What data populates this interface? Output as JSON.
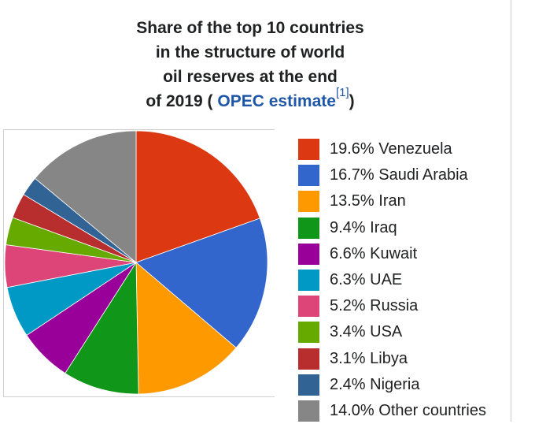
{
  "title": {
    "line1": "Share of the top 10 countries",
    "line2": "in the structure of world",
    "line3": "oil reserves at the end",
    "line4_prefix": "of 2019 (",
    "link_text": "OPEC estimate",
    "citation": "[1]",
    "line4_suffix": ")"
  },
  "legend": [
    {
      "label": "19.6% Venezuela",
      "color": "#dc3912"
    },
    {
      "label": "16.7% Saudi Arabia",
      "color": "#3366cc"
    },
    {
      "label": "13.5% Iran",
      "color": "#ff9900"
    },
    {
      "label": "9.4% Iraq",
      "color": "#109618"
    },
    {
      "label": "6.6% Kuwait",
      "color": "#990099"
    },
    {
      "label": "6.3% UAE",
      "color": "#0099c6"
    },
    {
      "label": "5.2% Russia",
      "color": "#dd4477"
    },
    {
      "label": "3.4% USA",
      "color": "#66aa00"
    },
    {
      "label": "3.1% Libya",
      "color": "#b82e2e"
    },
    {
      "label": "2.4% Nigeria",
      "color": "#316395"
    },
    {
      "label": "14.0% Other countries",
      "color": "#868686"
    }
  ],
  "chart_data": {
    "type": "pie",
    "categories": [
      "Venezuela",
      "Saudi Arabia",
      "Iran",
      "Iraq",
      "Kuwait",
      "UAE",
      "Russia",
      "USA",
      "Libya",
      "Nigeria",
      "Other countries"
    ],
    "values": [
      19.6,
      16.7,
      13.5,
      9.4,
      6.6,
      6.3,
      5.2,
      3.4,
      3.1,
      2.4,
      14.0
    ],
    "unit": "%",
    "colors": [
      "#dc3912",
      "#3366cc",
      "#ff9900",
      "#109618",
      "#990099",
      "#0099c6",
      "#dd4477",
      "#66aa00",
      "#b82e2e",
      "#316395",
      "#868686"
    ],
    "title": "Share of the top 10 countries in the structure of world oil reserves at the end of 2019 ( OPEC estimate [1] )",
    "legend_position": "right",
    "start": "12 o'clock",
    "direction": "clockwise"
  }
}
